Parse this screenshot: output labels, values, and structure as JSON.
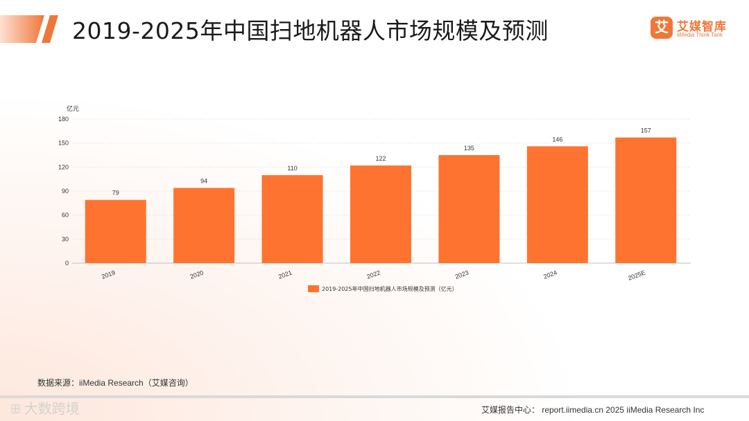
{
  "header": {
    "title": "2019-2025年中国扫地机器人市场规模及预测"
  },
  "logo": {
    "mark": "艾",
    "name": "艾媒智库",
    "sub": "iiMedia Think Tank"
  },
  "colors": {
    "accent": "#f0773a",
    "bar": "#ff7330"
  },
  "chart_data": {
    "type": "bar",
    "unit_label": "亿元",
    "categories": [
      "2019",
      "2020",
      "2021",
      "2022",
      "2023",
      "2024",
      "2025E"
    ],
    "series": [
      {
        "name": "2019-2025年中国扫地机器人市场规模及预测（亿元）",
        "values": [
          79,
          94,
          110,
          122,
          135,
          146,
          157
        ]
      }
    ],
    "yticks": [
      0,
      30,
      60,
      90,
      120,
      150,
      180
    ],
    "ylim": [
      0,
      180
    ],
    "grid": true,
    "legend_position": "bottom"
  },
  "footer": {
    "source": "数据来源：iiMedia Research（艾媒咨询）",
    "report_center": "艾媒报告中心： report.iimedia.cn   2025 iiMedia Research Inc",
    "watermark": "大数跨境"
  }
}
